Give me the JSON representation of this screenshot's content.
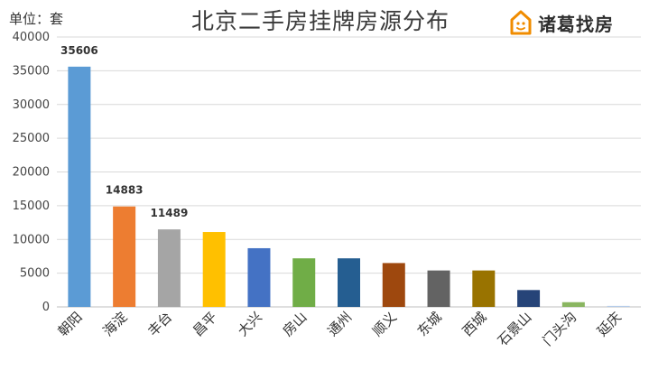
{
  "header": {
    "unit_label": "单位：套",
    "title": "北京二手房挂牌房源分布",
    "logo_text": "诸葛找房"
  },
  "chart_data": {
    "type": "bar",
    "title": "北京二手房挂牌房源分布",
    "ylabel": "单位：套",
    "xlabel": "",
    "ylim": [
      0,
      40000
    ],
    "yticks": [
      0,
      5000,
      10000,
      15000,
      20000,
      25000,
      30000,
      35000,
      40000
    ],
    "grid": true,
    "categories": [
      "朝阳",
      "海淀",
      "丰台",
      "昌平",
      "大兴",
      "房山",
      "通州",
      "顺义",
      "东城",
      "西城",
      "石景山",
      "门头沟",
      "延庆"
    ],
    "values": [
      35606,
      14883,
      11489,
      11100,
      8700,
      7200,
      7200,
      6500,
      5400,
      5400,
      2500,
      700,
      150
    ],
    "data_labels": [
      "35606",
      "14883",
      "11489",
      null,
      null,
      null,
      null,
      null,
      null,
      null,
      null,
      null,
      null
    ],
    "colors": [
      "#5B9BD5",
      "#ED7D31",
      "#A5A5A5",
      "#FFC000",
      "#4472C4",
      "#70AD47",
      "#255E91",
      "#9E480E",
      "#636363",
      "#997300",
      "#264478",
      "#8AB661",
      "#B5CCEA"
    ]
  }
}
